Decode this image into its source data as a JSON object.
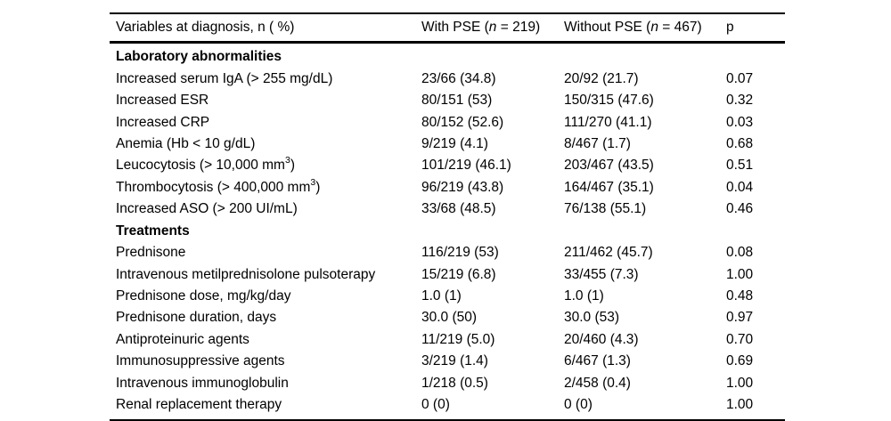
{
  "table": {
    "header": {
      "variables": "Variables at diagnosis, n ( %)",
      "with_pse": {
        "pre": "With PSE (",
        "n": "n",
        "post": " = 219)"
      },
      "without_pse": {
        "pre": "Without PSE (",
        "n": "n",
        "post": " = 467)"
      },
      "p": "p"
    },
    "sections": [
      {
        "title": "Laboratory abnormalities",
        "rows": [
          {
            "label": "Increased serum IgA (> 255 mg/dL)",
            "with_pse": "23/66 (34.8)",
            "without_pse": "20/92 (21.7)",
            "p": "0.07"
          },
          {
            "label": "Increased ESR",
            "with_pse": "80/151 (53)",
            "without_pse": "150/315 (47.6)",
            "p": "0.32"
          },
          {
            "label": "Increased CRP",
            "with_pse": "80/152 (52.6)",
            "without_pse": "111/270 (41.1)",
            "p": "0.03"
          },
          {
            "label": "Anemia (Hb < 10 g/dL)",
            "with_pse": "9/219 (4.1)",
            "without_pse": "8/467 (1.7)",
            "p": "0.68"
          },
          {
            "label": "Leucocytosis (> 10,000 mm",
            "label_sup": "3",
            "label_post": ")",
            "with_pse": "101/219 (46.1)",
            "without_pse": "203/467 (43.5)",
            "p": "0.51"
          },
          {
            "label": "Thrombocytosis (> 400,000 mm",
            "label_sup": "3",
            "label_post": ")",
            "with_pse": "96/219 (43.8)",
            "without_pse": "164/467 (35.1)",
            "p": "0.04"
          },
          {
            "label": "Increased ASO (> 200 UI/mL)",
            "with_pse": "33/68 (48.5)",
            "without_pse": "76/138 (55.1)",
            "p": "0.46"
          }
        ]
      },
      {
        "title": "Treatments",
        "rows": [
          {
            "label": "Prednisone",
            "with_pse": "116/219 (53)",
            "without_pse": "211/462 (45.7)",
            "p": "0.08"
          },
          {
            "label": "Intravenous metilprednisolone pulsoterapy",
            "with_pse": "15/219 (6.8)",
            "without_pse": "33/455 (7.3)",
            "p": "1.00"
          },
          {
            "label": "Prednisone dose, mg/kg/day",
            "with_pse": "1.0 (1)",
            "without_pse": "1.0 (1)",
            "p": "0.48"
          },
          {
            "label": "Prednisone duration, days",
            "with_pse": "30.0 (50)",
            "without_pse": "30.0 (53)",
            "p": "0.97"
          },
          {
            "label": "Antiproteinuric agents",
            "with_pse": "11/219 (5.0)",
            "without_pse": "20/460 (4.3)",
            "p": "0.70"
          },
          {
            "label": "Immunosuppressive agents",
            "with_pse": "3/219 (1.4)",
            "without_pse": "6/467 (1.3)",
            "p": "0.69"
          },
          {
            "label": "Intravenous immunoglobulin",
            "with_pse": "1/218 (0.5)",
            "without_pse": "2/458 (0.4)",
            "p": "1.00"
          },
          {
            "label": "Renal replacement therapy",
            "with_pse": "0 (0)",
            "without_pse": "0 (0)",
            "p": "1.00"
          }
        ]
      }
    ]
  }
}
